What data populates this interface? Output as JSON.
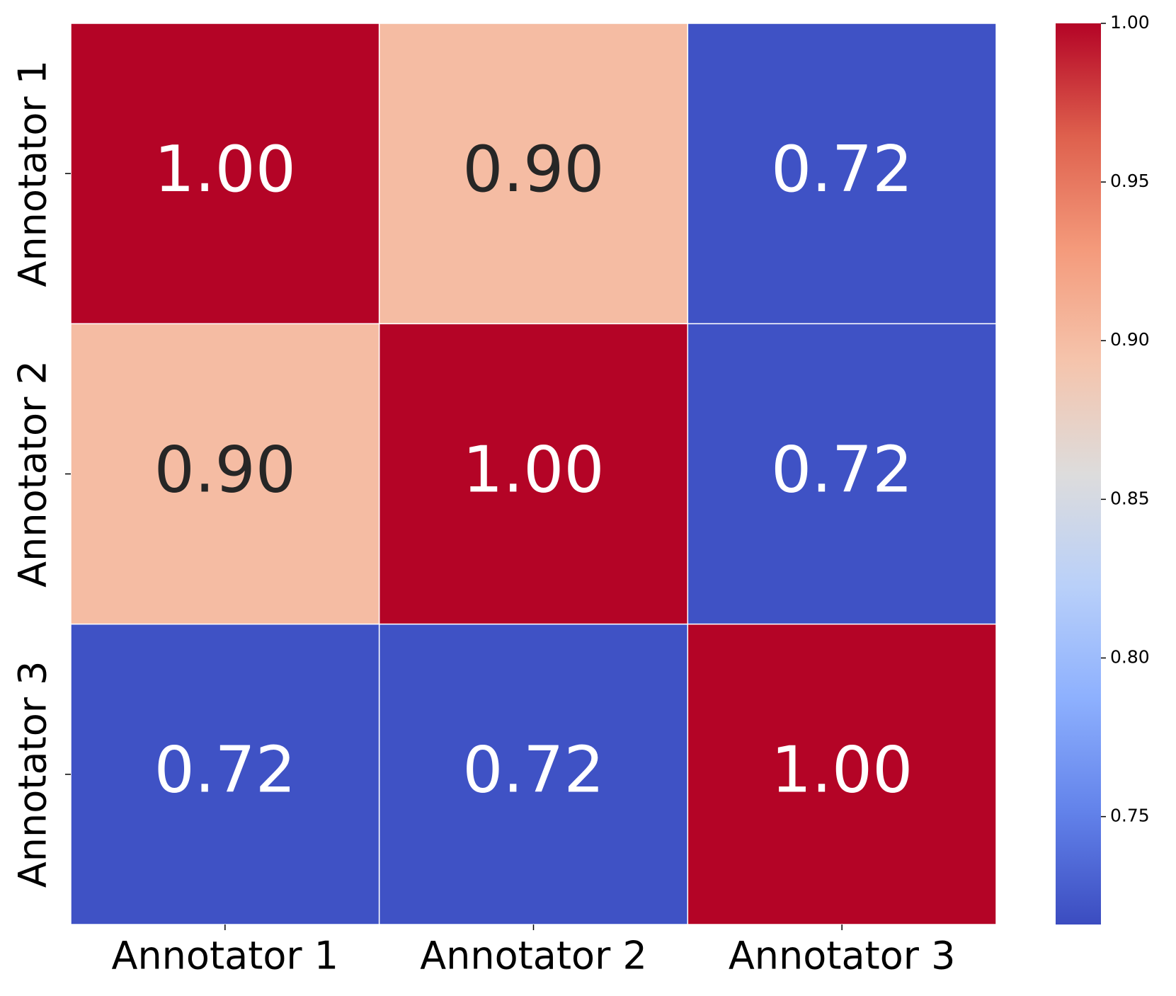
{
  "chart_data": {
    "type": "heatmap",
    "x_categories": [
      "Annotator 1",
      "Annotator 2",
      "Annotator 3"
    ],
    "y_categories": [
      "Annotator 1",
      "Annotator 2",
      "Annotator 3"
    ],
    "values": [
      [
        1.0,
        0.9,
        0.72
      ],
      [
        0.9,
        1.0,
        0.72
      ],
      [
        0.72,
        0.72,
        1.0
      ]
    ],
    "value_labels": [
      [
        "1.00",
        "0.90",
        "0.72"
      ],
      [
        "0.90",
        "1.00",
        "0.72"
      ],
      [
        "0.72",
        "0.72",
        "1.00"
      ]
    ],
    "colormap": "coolwarm",
    "clim": [
      0.716,
      1.0
    ],
    "cticks": [
      {
        "value": 0.75,
        "label": "0.75"
      },
      {
        "value": 0.8,
        "label": "0.80"
      },
      {
        "value": 0.85,
        "label": "0.85"
      },
      {
        "value": 0.9,
        "label": "0.90"
      },
      {
        "value": 0.95,
        "label": "0.95"
      },
      {
        "value": 1.0,
        "label": "1.00"
      }
    ]
  }
}
